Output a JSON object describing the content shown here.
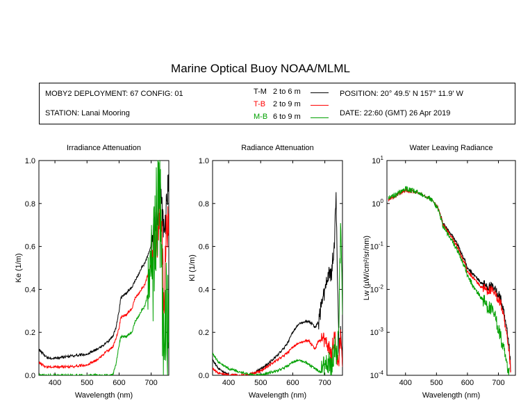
{
  "title": "Marine Optical Buoy NOAA/MLML",
  "info": {
    "deployment": "MOBY2 DEPLOYMENT: 67 CONFIG: 01",
    "station": "STATION: Lanai Mooring",
    "position": "POSITION: 20° 49.5' N   157° 11.9' W",
    "date": "DATE: 22:60 (GMT) 26 Apr 2019"
  },
  "legend": [
    {
      "code": "T-M",
      "range": "2 to 6  m",
      "color": "#000000"
    },
    {
      "code": "T-B",
      "range": "2 to 9  m",
      "color": "#ff0000"
    },
    {
      "code": "M-B",
      "range": "6 to 9  m",
      "color": "#00a000"
    }
  ],
  "colors": {
    "T-M": "#000000",
    "T-B": "#ff0000",
    "M-B": "#00a000"
  },
  "chart_data": [
    {
      "type": "line",
      "title": "Irradiance Attenuation",
      "xlabel": "Wavelength (nm)",
      "ylabel": "Ke  (1/m)",
      "xlim": [
        350,
        755
      ],
      "ylim": [
        0,
        1.0
      ],
      "xticks": [
        400,
        500,
        600,
        700
      ],
      "xtick_labels": [
        "400",
        "500",
        "600",
        "700"
      ],
      "yticks": [
        0,
        0.2,
        0.4,
        0.6,
        0.8,
        1.0
      ],
      "ytick_labels": [
        "0.0",
        "0.2",
        "0.4",
        "0.6",
        "0.8",
        "1.0"
      ],
      "series": [
        {
          "name": "T-M",
          "color": "#000000",
          "noise_start": 700,
          "noise_amp": 0.08,
          "x": [
            350,
            370,
            380,
            400,
            450,
            500,
            530,
            560,
            580,
            590,
            600,
            605,
            620,
            640,
            650,
            670,
            680,
            690,
            700,
            710,
            720,
            725,
            730,
            735,
            740,
            745,
            750,
            755
          ],
          "y": [
            0.12,
            0.09,
            0.08,
            0.08,
            0.09,
            0.1,
            0.12,
            0.15,
            0.18,
            0.22,
            0.3,
            0.36,
            0.38,
            0.41,
            0.44,
            0.5,
            0.52,
            0.56,
            0.6,
            0.68,
            0.78,
            0.84,
            0.82,
            0.75,
            0.7,
            0.72,
            0.85,
            0.9
          ]
        },
        {
          "name": "T-B",
          "color": "#ff0000",
          "noise_start": 700,
          "noise_amp": 0.12,
          "x": [
            350,
            370,
            380,
            400,
            450,
            500,
            530,
            560,
            580,
            590,
            600,
            605,
            620,
            640,
            650,
            670,
            680,
            690,
            700,
            710,
            720,
            725,
            730,
            735,
            740,
            745,
            750,
            755
          ],
          "y": [
            0.06,
            0.04,
            0.04,
            0.04,
            0.04,
            0.05,
            0.07,
            0.11,
            0.13,
            0.17,
            0.22,
            0.27,
            0.28,
            0.31,
            0.36,
            0.4,
            0.42,
            0.47,
            0.52,
            0.6,
            0.66,
            0.75,
            0.7,
            0.6,
            0.3,
            0.62,
            0.7,
            0.68
          ]
        },
        {
          "name": "M-B",
          "color": "#00a000",
          "noise_start": 690,
          "noise_amp": 0.3,
          "x": [
            350,
            370,
            380,
            400,
            450,
            500,
            530,
            560,
            580,
            590,
            600,
            605,
            620,
            640,
            650,
            670,
            680,
            690,
            700,
            710,
            720,
            725,
            730,
            735,
            740,
            745,
            750,
            755
          ],
          "y": [
            0.0,
            0.0,
            0.0,
            0.0,
            0.0,
            0.0,
            0.0,
            0.0,
            0.0,
            0.05,
            0.14,
            0.18,
            0.18,
            0.2,
            0.25,
            0.3,
            0.32,
            0.38,
            0.42,
            0.55,
            0.85,
            0.95,
            0.6,
            0.3,
            0.2,
            0.3,
            0.25,
            0.2
          ]
        }
      ]
    },
    {
      "type": "line",
      "title": "Radiance Attenuation",
      "xlabel": "Wavelength (nm)",
      "ylabel": "Kl  (1/m)",
      "xlim": [
        350,
        755
      ],
      "ylim": [
        0,
        1.0
      ],
      "xticks": [
        400,
        500,
        600,
        700
      ],
      "xtick_labels": [
        "400",
        "500",
        "600",
        "700"
      ],
      "yticks": [
        0,
        0.2,
        0.4,
        0.6,
        0.8,
        1.0
      ],
      "ytick_labels": [
        "0.0",
        "0.2",
        "0.4",
        "0.6",
        "0.8",
        "1.0"
      ],
      "series": [
        {
          "name": "T-M",
          "color": "#000000",
          "noise_start": 680,
          "noise_amp": 0.05,
          "x": [
            350,
            370,
            400,
            450,
            480,
            500,
            520,
            550,
            580,
            600,
            620,
            640,
            650,
            660,
            670,
            680,
            690,
            700,
            710,
            720,
            730,
            735,
            740,
            745,
            750,
            755
          ],
          "y": [
            0.07,
            0.03,
            0.0,
            0.0,
            0.01,
            0.03,
            0.05,
            0.09,
            0.14,
            0.2,
            0.24,
            0.25,
            0.25,
            0.24,
            0.22,
            0.25,
            0.32,
            0.38,
            0.45,
            0.48,
            0.6,
            0.84,
            0.4,
            0.1,
            0.2,
            0.05
          ]
        },
        {
          "name": "T-B",
          "color": "#ff0000",
          "noise_start": 690,
          "noise_amp": 0.05,
          "x": [
            350,
            370,
            400,
            450,
            480,
            500,
            520,
            550,
            580,
            600,
            620,
            640,
            650,
            660,
            670,
            680,
            690,
            700,
            710,
            720,
            730,
            740,
            745,
            750,
            755
          ],
          "y": [
            0.03,
            0.01,
            0.0,
            0.0,
            0.01,
            0.02,
            0.04,
            0.07,
            0.1,
            0.13,
            0.15,
            0.16,
            0.16,
            0.14,
            0.12,
            0.16,
            0.16,
            0.15,
            0.12,
            0.1,
            0.18,
            0.05,
            0.1,
            0.18,
            0.05
          ]
        },
        {
          "name": "M-B",
          "color": "#00a000",
          "noise_start": 690,
          "noise_amp": 0.08,
          "x": [
            350,
            370,
            400,
            450,
            480,
            500,
            520,
            550,
            580,
            600,
            620,
            640,
            650,
            660,
            670,
            680,
            690,
            700,
            710,
            720,
            730,
            740,
            745,
            750,
            755
          ],
          "y": [
            0.1,
            0.06,
            0.03,
            0.01,
            0.0,
            0.0,
            0.01,
            0.02,
            0.04,
            0.06,
            0.07,
            0.06,
            0.05,
            0.04,
            0.03,
            0.02,
            0.01,
            0.02,
            0.03,
            0.05,
            0.1,
            0.1,
            0.35,
            0.7,
            0.3
          ]
        }
      ]
    },
    {
      "type": "line",
      "title": "Water Leaving Radiance",
      "xlabel": "Wavelength (nm)",
      "ylabel": "Lw  (µW/cm²/sr/nm)",
      "xlim": [
        340,
        755
      ],
      "ylim": [
        0.0001,
        10
      ],
      "yscale": "log",
      "xticks": [
        400,
        500,
        600,
        700
      ],
      "xtick_labels": [
        "400",
        "500",
        "600",
        "700"
      ],
      "yticks": [
        0.0001,
        0.001,
        0.01,
        0.1,
        1,
        10
      ],
      "ytick_labels": [
        [
          "10",
          "-4"
        ],
        [
          "10",
          "-3"
        ],
        [
          "10",
          "-2"
        ],
        [
          "10",
          "-1"
        ],
        [
          "10",
          "0"
        ],
        [
          "10",
          "1"
        ]
      ],
      "series": [
        {
          "name": "T-M",
          "color": "#000000",
          "noise_start": 340,
          "noise_amp": 0.04,
          "x": [
            345,
            360,
            380,
            400,
            420,
            450,
            480,
            500,
            520,
            540,
            560,
            580,
            600,
            620,
            640,
            660,
            680,
            700,
            710,
            720,
            730,
            740
          ],
          "y": [
            1.2,
            1.4,
            1.7,
            2.0,
            1.9,
            1.7,
            1.3,
            0.9,
            0.35,
            0.22,
            0.14,
            0.07,
            0.03,
            0.022,
            0.015,
            0.012,
            0.011,
            0.008,
            0.005,
            0.002,
            0.0007,
            0.0001
          ]
        },
        {
          "name": "T-B",
          "color": "#ff0000",
          "noise_start": 340,
          "noise_amp": 0.04,
          "x": [
            345,
            360,
            380,
            400,
            420,
            450,
            480,
            500,
            520,
            540,
            560,
            580,
            600,
            620,
            640,
            660,
            680,
            700,
            710,
            720,
            730,
            740
          ],
          "y": [
            1.2,
            1.4,
            1.7,
            2.0,
            1.9,
            1.7,
            1.3,
            0.9,
            0.33,
            0.2,
            0.12,
            0.06,
            0.025,
            0.018,
            0.012,
            0.01,
            0.009,
            0.006,
            0.004,
            0.0015,
            0.0005,
            0.0001
          ]
        },
        {
          "name": "M-B",
          "color": "#00a000",
          "noise_start": 340,
          "noise_amp": 0.06,
          "x": [
            345,
            360,
            380,
            400,
            420,
            450,
            480,
            500,
            520,
            540,
            560,
            580,
            600,
            620,
            640,
            660,
            680,
            690,
            700,
            710,
            720,
            730,
            735
          ],
          "y": [
            1.3,
            1.5,
            1.8,
            2.2,
            2.0,
            1.7,
            1.3,
            0.85,
            0.3,
            0.17,
            0.1,
            0.05,
            0.02,
            0.011,
            0.007,
            0.0045,
            0.003,
            0.0022,
            0.0012,
            0.0006,
            0.0003,
            0.0001,
            0.0001
          ]
        }
      ]
    }
  ]
}
